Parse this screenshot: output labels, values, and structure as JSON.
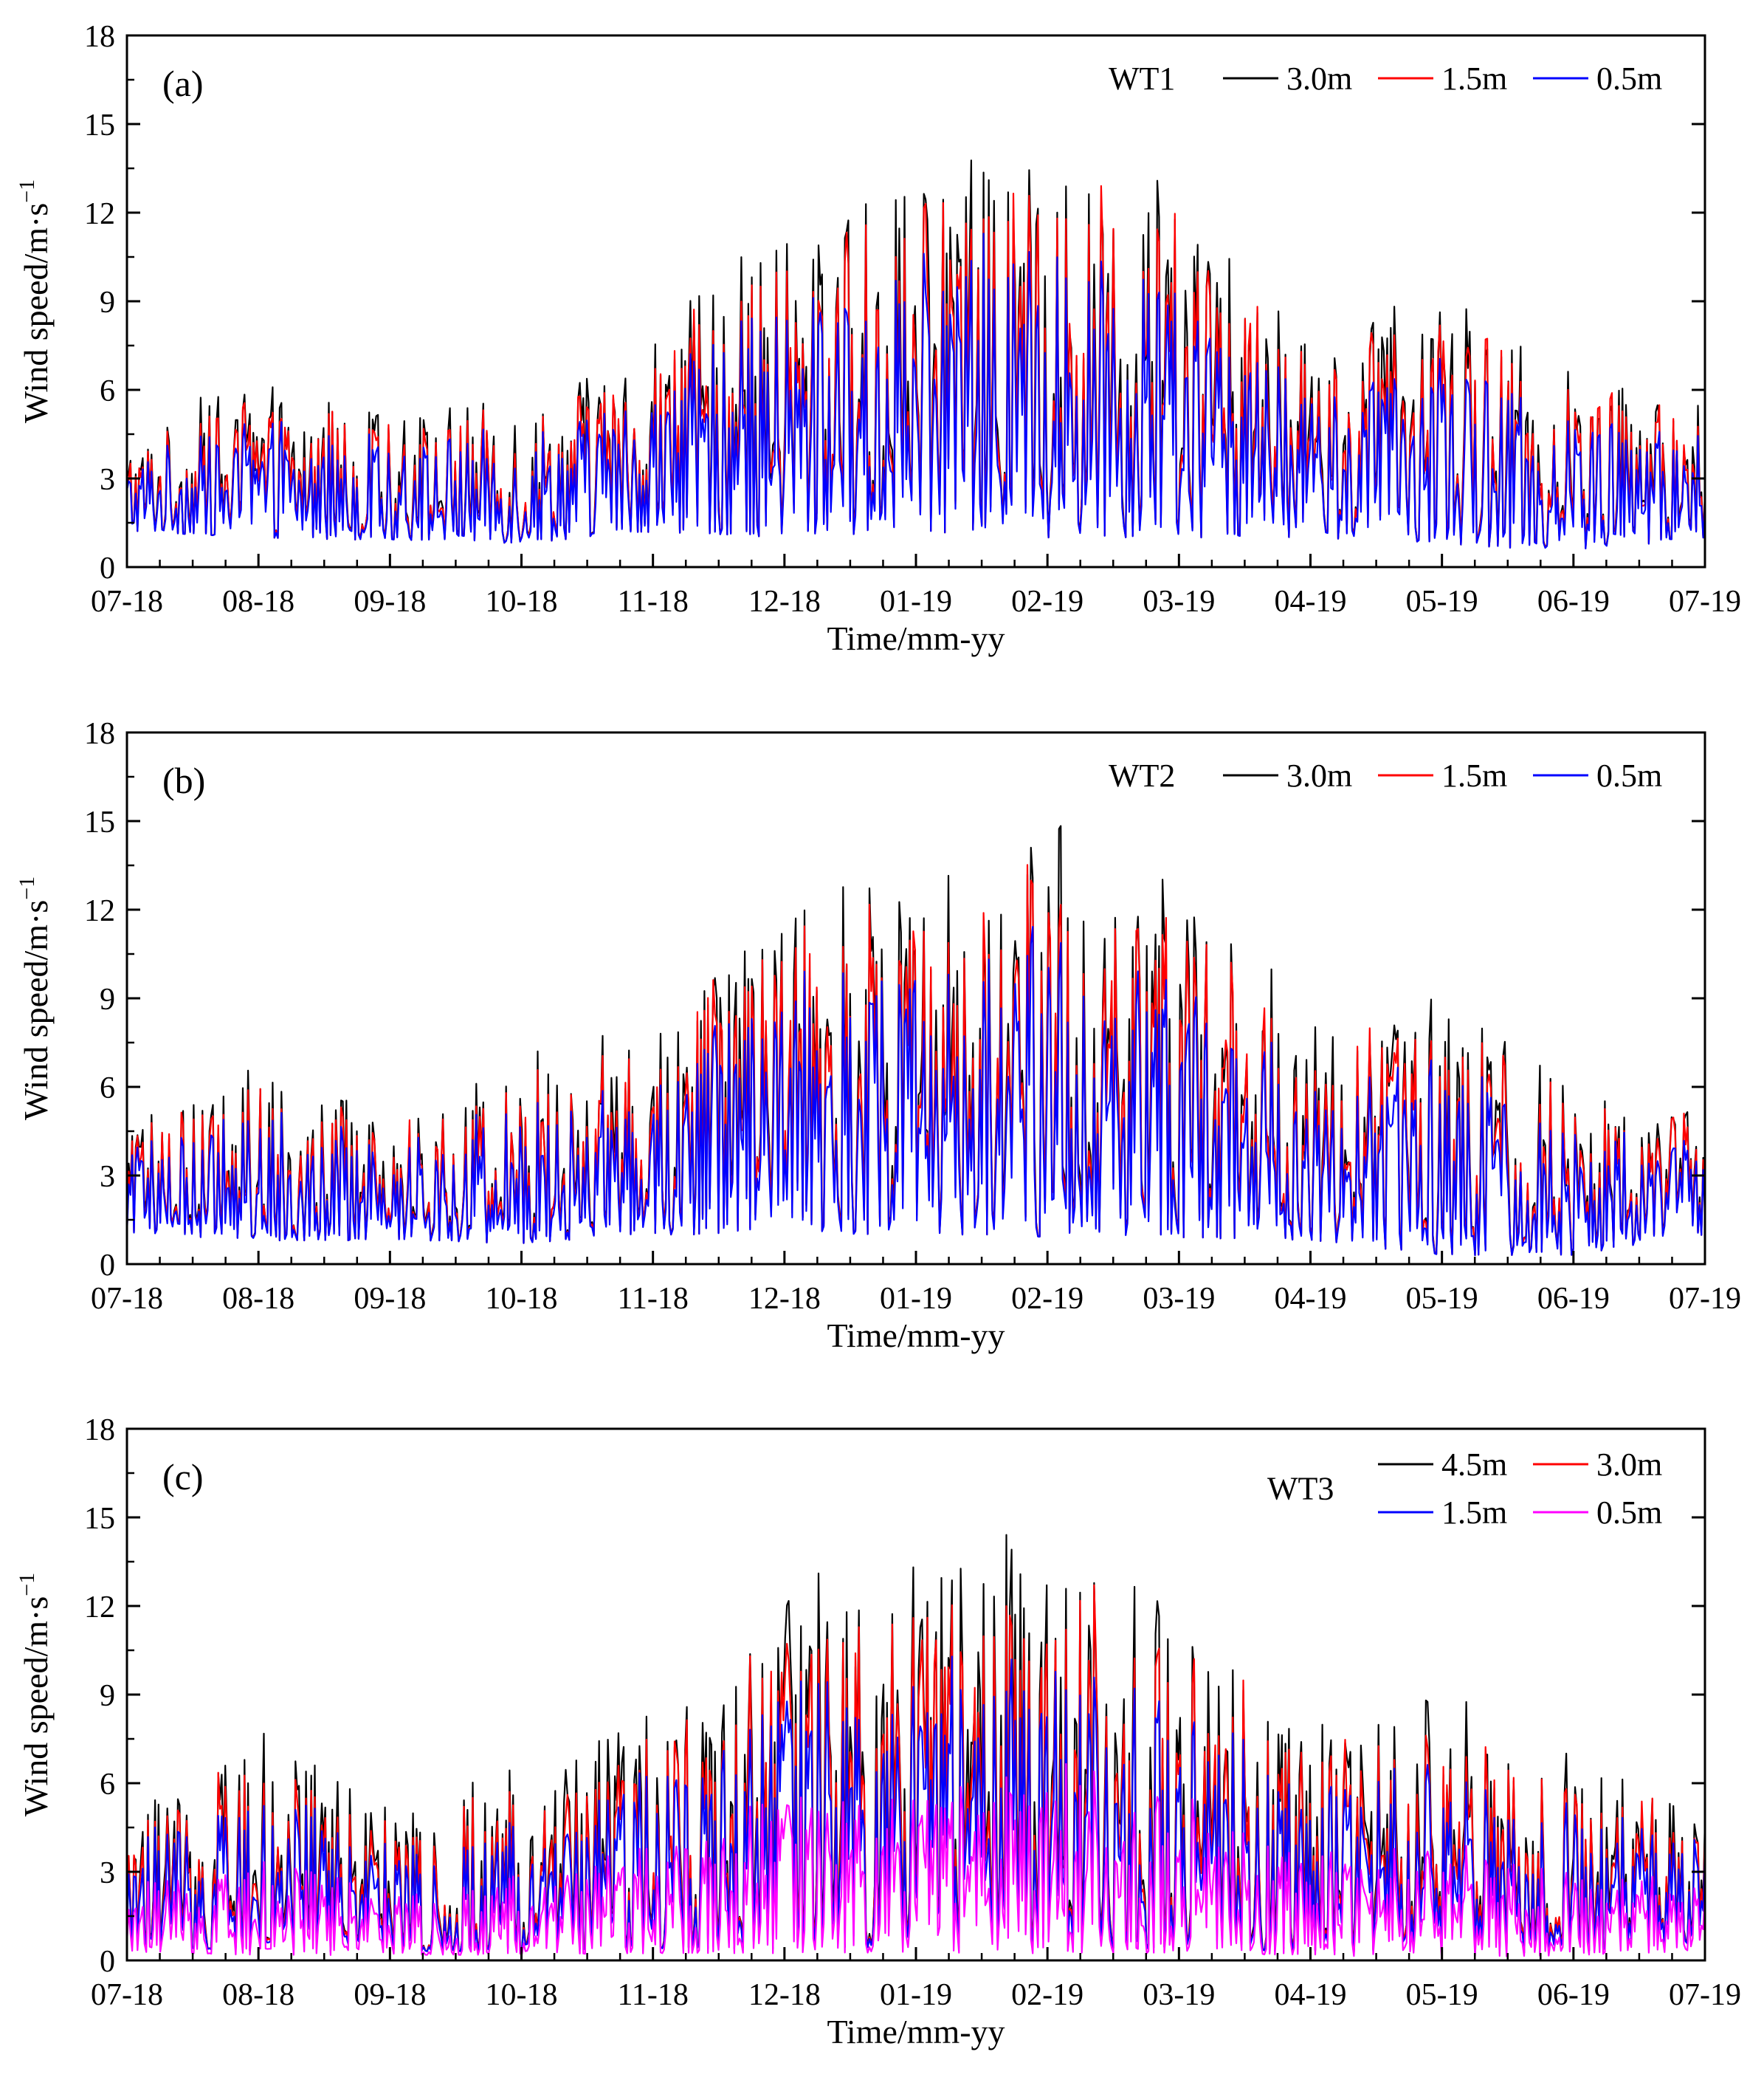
{
  "chart_data": [
    {
      "type": "line",
      "panel_label": "(a)",
      "station": "WT1",
      "xlabel": "Time/mm-yy",
      "ylabel": "Wind speed/m·s",
      "ylabel_exponent": "−1",
      "ylim": [
        0,
        18
      ],
      "yticks": [
        "0",
        "3",
        "6",
        "9",
        "12",
        "15",
        "18"
      ],
      "x_categories": [
        "07-18",
        "08-18",
        "09-18",
        "10-18",
        "11-18",
        "12-18",
        "01-19",
        "02-19",
        "03-19",
        "04-19",
        "05-19",
        "06-19",
        "07-19"
      ],
      "legend": "inside top-right",
      "series": [
        {
          "name": "3.0m",
          "color": "#000000",
          "values_hint": "highest level",
          "peak": 14.4
        },
        {
          "name": "1.5m",
          "color": "#ff0000",
          "values_hint": "middle level",
          "peak": 13.6
        },
        {
          "name": "0.5m",
          "color": "#0000ff",
          "values_hint": "lowest level",
          "peak": 12.0
        }
      ],
      "envelope_max": [
        4.5,
        6.0,
        5.2,
        5.8,
        7.5,
        11.5,
        12.5,
        14.4,
        12.0,
        7.5,
        8.7,
        6.5,
        5.2
      ],
      "envelope_min": [
        1.2,
        1.0,
        0.9,
        0.8,
        1.2,
        1.0,
        1.2,
        1.0,
        1.0,
        1.0,
        0.8,
        0.5,
        1.0
      ]
    },
    {
      "type": "line",
      "panel_label": "(b)",
      "station": "WT2",
      "xlabel": "Time/mm-yy",
      "ylabel": "Wind speed/m·s",
      "ylabel_exponent": "−1",
      "ylim": [
        0,
        18
      ],
      "yticks": [
        "0",
        "3",
        "6",
        "9",
        "12",
        "15",
        "18"
      ],
      "x_categories": [
        "07-18",
        "08-18",
        "09-18",
        "10-18",
        "11-18",
        "12-18",
        "01-19",
        "02-19",
        "03-19",
        "04-19",
        "05-19",
        "06-19",
        "07-19"
      ],
      "legend": "inside top-right",
      "series": [
        {
          "name": "3.0m",
          "color": "#000000",
          "values_hint": "highest level",
          "peak": 14.5
        },
        {
          "name": "1.5m",
          "color": "#ff0000",
          "values_hint": "middle level",
          "peak": 13.5
        },
        {
          "name": "0.5m",
          "color": "#0000ff",
          "values_hint": "lowest level",
          "peak": 11.8
        }
      ],
      "envelope_max": [
        4.5,
        6.5,
        5.0,
        6.5,
        8.0,
        12.0,
        12.5,
        14.5,
        12.0,
        8.0,
        8.7,
        6.2,
        5.1
      ],
      "envelope_min": [
        1.0,
        0.8,
        0.8,
        0.7,
        1.0,
        1.0,
        1.0,
        0.9,
        0.9,
        0.8,
        0.3,
        0.3,
        1.0
      ]
    },
    {
      "type": "line",
      "panel_label": "(c)",
      "station": "WT3",
      "xlabel": "Time/mm-yy",
      "ylabel": "Wind speed/m·s",
      "ylabel_exponent": "−1",
      "ylim": [
        0,
        18
      ],
      "yticks": [
        "0",
        "3",
        "6",
        "9",
        "12",
        "15",
        "18"
      ],
      "x_categories": [
        "07-18",
        "08-18",
        "09-18",
        "10-18",
        "11-18",
        "12-18",
        "01-19",
        "02-19",
        "03-19",
        "04-19",
        "05-19",
        "06-19",
        "07-19"
      ],
      "legend": "inside top-right",
      "series": [
        {
          "name": "4.5m",
          "color": "#000000",
          "values_hint": "highest level",
          "peak": 14.3
        },
        {
          "name": "3.0m",
          "color": "#ff0000",
          "values_hint": "second level",
          "peak": 13.2
        },
        {
          "name": "1.5m",
          "color": "#0000ff",
          "values_hint": "third level",
          "peak": 11.0
        },
        {
          "name": "0.5m",
          "color": "#ff00ff",
          "values_hint": "lowest level",
          "peak": 6.5
        }
      ],
      "envelope_max": [
        5.0,
        7.5,
        5.0,
        6.0,
        8.0,
        12.0,
        12.5,
        14.3,
        11.5,
        8.0,
        8.5,
        7.0,
        5.2
      ],
      "envelope_min": [
        0.5,
        0.3,
        0.3,
        0.3,
        0.4,
        0.4,
        0.4,
        0.4,
        0.4,
        0.3,
        0.1,
        0.3,
        0.5
      ]
    }
  ]
}
